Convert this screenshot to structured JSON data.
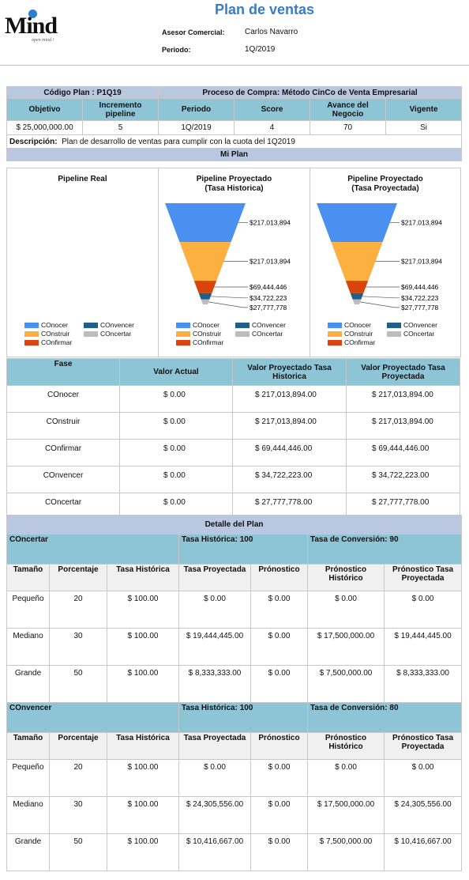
{
  "header": {
    "logo_text": "Mind",
    "logo_tagline": "open mind !",
    "title": "Plan de ventas",
    "asesor_label": "Asesor Comercial:",
    "asesor_value": "Carlos Navarro",
    "periodo_label": "Periodo:",
    "periodo_value": "1Q/2019"
  },
  "plan": {
    "codigo": "Código Plan : P1Q19",
    "proceso": "Proceso de Compra: Método CinCo de Venta Empresarial",
    "headers": [
      "Objetivo",
      "Incremento pipeline",
      "Periodo",
      "Score",
      "Avance del Negocio",
      "Vigente"
    ],
    "values": [
      "$ 25,000,000.00",
      "5",
      "1Q/2019",
      "4",
      "70",
      "Si"
    ],
    "descripcion_label": "Descripción:",
    "descripcion_value": "Plan de desarrollo de ventas para cumplir con la cuota del 1Q2019",
    "mi_plan": "Mi Plan"
  },
  "charts": {
    "panel1_title": "Pipeline Real",
    "panel2_title": "Pipeline Proyectado\n(Tasa Historica)",
    "panel3_title": "Pipeline Proyectado\n(Tasa Proyectada)",
    "legend": [
      {
        "label": "COnocer",
        "color": "#4a90f0"
      },
      {
        "label": "COnvencer",
        "color": "#1f5f8a"
      },
      {
        "label": "COnstruir",
        "color": "#fbb040"
      },
      {
        "label": "COncertar",
        "color": "#bdbdbd"
      },
      {
        "label": "COnfirmar",
        "color": "#d9430e"
      }
    ]
  },
  "chart_data": [
    {
      "type": "funnel",
      "title": "Pipeline Real",
      "categories": [
        "COnocer",
        "COnstruir",
        "COnfirmar",
        "COnvencer",
        "COncertar"
      ],
      "values": [
        0,
        0,
        0,
        0,
        0
      ]
    },
    {
      "type": "funnel",
      "title": "Pipeline Proyectado (Tasa Historica)",
      "categories": [
        "COnocer",
        "COnstruir",
        "COnfirmar",
        "COnvencer",
        "COncertar"
      ],
      "values": [
        217013894,
        217013894,
        69444446,
        34722223,
        27777778
      ],
      "labels": [
        "$217,013,894",
        "$217,013,894",
        "$69,444,446",
        "$34,722,223",
        "$27,777,778"
      ]
    },
    {
      "type": "funnel",
      "title": "Pipeline Proyectado (Tasa Proyectada)",
      "categories": [
        "COnocer",
        "COnstruir",
        "COnfirmar",
        "COnvencer",
        "COncertar"
      ],
      "values": [
        217013894,
        217013894,
        69444446,
        34722223,
        27777778
      ],
      "labels": [
        "$217,013,894",
        "$217,013,894",
        "$69,444,446",
        "$34,722,223",
        "$27,777,778"
      ]
    }
  ],
  "fases": {
    "headers": [
      "Fase",
      "Valor Actual",
      "Valor Proyectado Tasa Historica",
      "Valor Proyectado Tasa Proyectada"
    ],
    "rows": [
      [
        "COnocer",
        "$ 0.00",
        "$ 217,013,894.00",
        "$ 217,013,894.00"
      ],
      [
        "COnstruir",
        "$ 0.00",
        "$ 217,013,894.00",
        "$ 217,013,894.00"
      ],
      [
        "COnfirmar",
        "$ 0.00",
        "$ 69,444,446.00",
        "$ 69,444,446.00"
      ],
      [
        "COnvencer",
        "$ 0.00",
        "$ 34,722,223.00",
        "$ 34,722,223.00"
      ],
      [
        "COncertar",
        "$ 0.00",
        "$ 27,777,778.00",
        "$ 27,777,778.00"
      ]
    ]
  },
  "detalle": {
    "title": "Detalle del Plan",
    "headers": [
      "Tamaño",
      "Porcentaje",
      "Tasa Histórica",
      "Tasa Proyectada",
      "Prónostico",
      "Prónostico Histórico",
      "Prónostico Tasa Proyectada"
    ],
    "sections": [
      {
        "name": "COncertar",
        "tasa_historica": "Tasa Histórica: 100",
        "tasa_conversion": "Tasa de Conversión: 90",
        "rows": [
          [
            "Pequeño",
            "20",
            "$ 100.00",
            "$ 0.00",
            "$ 0.00",
            "$ 0.00",
            "$ 0.00"
          ],
          [
            "Mediano",
            "30",
            "$ 100.00",
            "$ 19,444,445.00",
            "$ 0.00",
            "$ 17,500,000.00",
            "$ 19,444,445.00"
          ],
          [
            "Grande",
            "50",
            "$ 100.00",
            "$ 8,333,333.00",
            "$ 0.00",
            "$ 7,500,000.00",
            "$ 8,333,333.00"
          ]
        ]
      },
      {
        "name": "COnvencer",
        "tasa_historica": "Tasa Histórica: 100",
        "tasa_conversion": "Tasa de Conversión: 80",
        "rows": [
          [
            "Pequeño",
            "20",
            "$ 100.00",
            "$ 0.00",
            "$ 0.00",
            "$ 0.00",
            "$ 0.00"
          ],
          [
            "Mediano",
            "30",
            "$ 100.00",
            "$ 24,305,556.00",
            "$ 0.00",
            "$ 17,500,000.00",
            "$ 24,305,556.00"
          ],
          [
            "Grande",
            "50",
            "$ 100.00",
            "$ 10,416,667.00",
            "$ 0.00",
            "$ 7,500,000.00",
            "$ 10,416,667.00"
          ]
        ]
      }
    ]
  }
}
